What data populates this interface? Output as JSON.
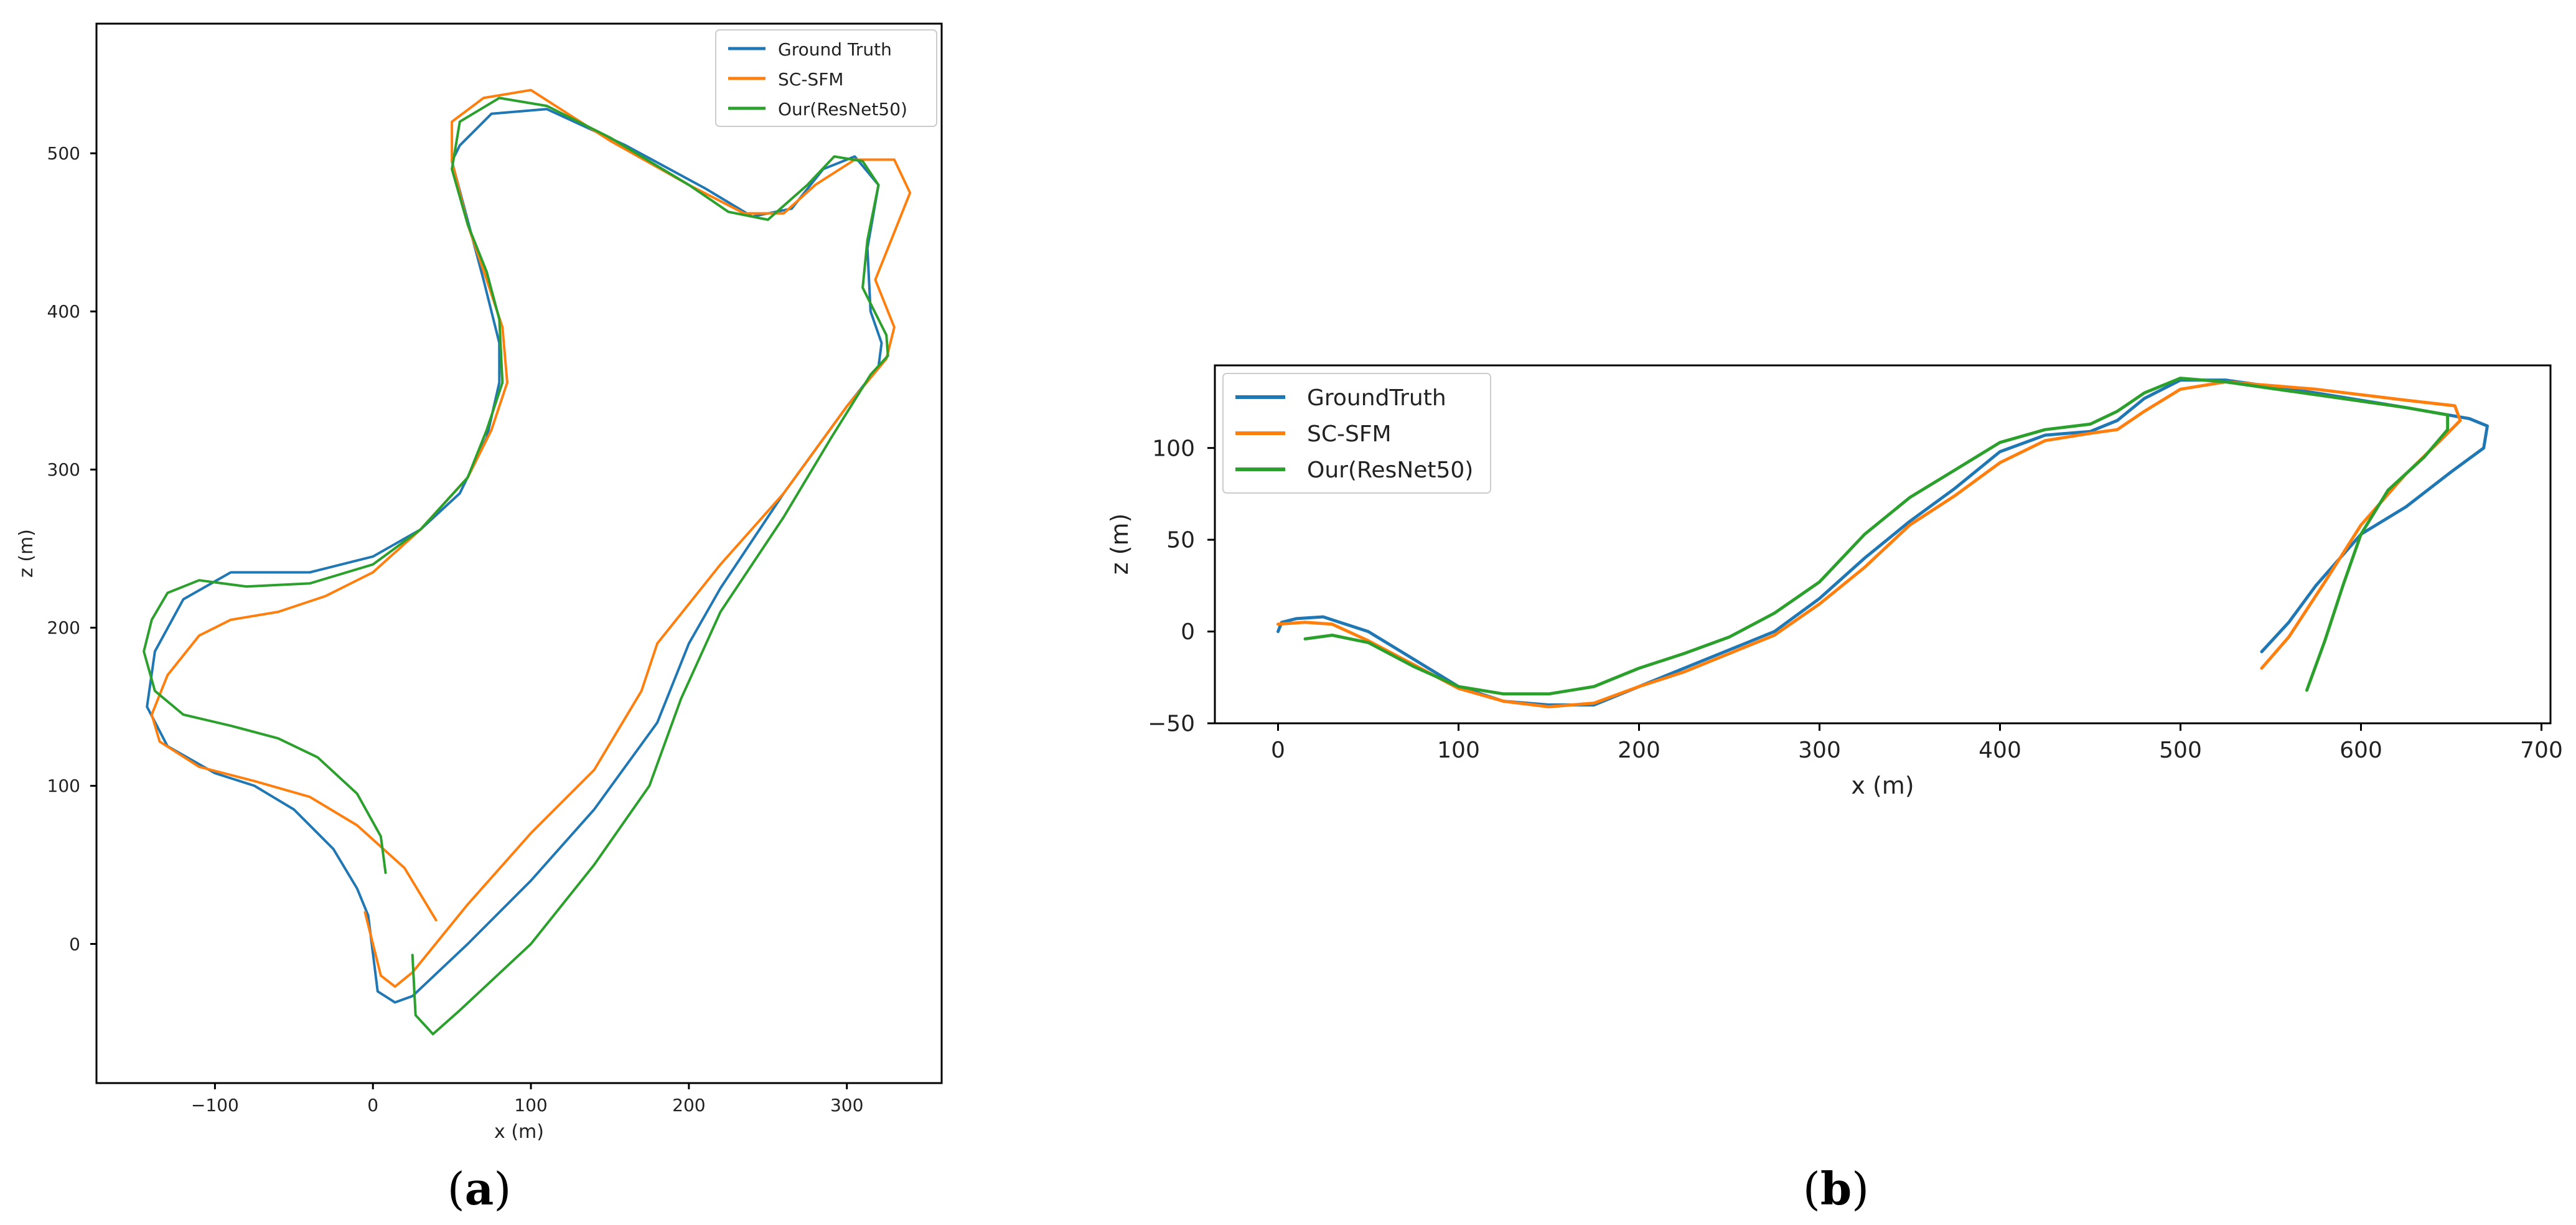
{
  "chart_data": [
    {
      "panel": "a",
      "type": "line",
      "caption_open": "(",
      "caption_letter": "a",
      "caption_close": ")",
      "xlabel": "x (m)",
      "ylabel": "z (m)",
      "xlim": [
        -175,
        360
      ],
      "ylim": [
        -88,
        582
      ],
      "xticks": [
        -100,
        0,
        100,
        200,
        300
      ],
      "yticks": [
        0,
        100,
        200,
        300,
        400,
        500
      ],
      "legend_position": "top-right",
      "series": [
        {
          "name": "Ground Truth",
          "color": "#1f77b4",
          "points": [
            [
              -3,
              18
            ],
            [
              3,
              -30
            ],
            [
              14,
              -37
            ],
            [
              25,
              -33
            ],
            [
              60,
              0
            ],
            [
              100,
              40
            ],
            [
              140,
              85
            ],
            [
              180,
              140
            ],
            [
              200,
              190
            ],
            [
              220,
              225
            ],
            [
              260,
              285
            ],
            [
              300,
              340
            ],
            [
              320,
              365
            ],
            [
              322,
              380
            ],
            [
              315,
              400
            ],
            [
              313,
              440
            ],
            [
              320,
              480
            ],
            [
              305,
              498
            ],
            [
              285,
              490
            ],
            [
              265,
              465
            ],
            [
              240,
              460
            ],
            [
              210,
              478
            ],
            [
              160,
              505
            ],
            [
              110,
              528
            ],
            [
              75,
              525
            ],
            [
              55,
              505
            ],
            [
              50,
              495
            ],
            [
              58,
              465
            ],
            [
              70,
              420
            ],
            [
              80,
              380
            ],
            [
              80,
              355
            ],
            [
              72,
              320
            ],
            [
              55,
              285
            ],
            [
              30,
              262
            ],
            [
              0,
              245
            ],
            [
              -40,
              235
            ],
            [
              -90,
              235
            ],
            [
              -120,
              218
            ],
            [
              -138,
              185
            ],
            [
              -143,
              150
            ],
            [
              -130,
              125
            ],
            [
              -100,
              108
            ],
            [
              -75,
              100
            ],
            [
              -50,
              85
            ],
            [
              -25,
              60
            ],
            [
              -10,
              35
            ],
            [
              -3,
              18
            ]
          ]
        },
        {
          "name": "SC-SFM",
          "color": "#ff7f0e",
          "points": [
            [
              -5,
              20
            ],
            [
              5,
              -20
            ],
            [
              14,
              -27
            ],
            [
              25,
              -18
            ],
            [
              60,
              25
            ],
            [
              100,
              70
            ],
            [
              140,
              110
            ],
            [
              170,
              160
            ],
            [
              180,
              190
            ],
            [
              220,
              240
            ],
            [
              260,
              285
            ],
            [
              300,
              340
            ],
            [
              325,
              370
            ],
            [
              330,
              390
            ],
            [
              318,
              420
            ],
            [
              330,
              450
            ],
            [
              340,
              475
            ],
            [
              330,
              496
            ],
            [
              305,
              496
            ],
            [
              280,
              480
            ],
            [
              260,
              462
            ],
            [
              235,
              462
            ],
            [
              200,
              480
            ],
            [
              150,
              508
            ],
            [
              100,
              540
            ],
            [
              70,
              535
            ],
            [
              50,
              520
            ],
            [
              50,
              495
            ],
            [
              60,
              455
            ],
            [
              72,
              420
            ],
            [
              82,
              390
            ],
            [
              85,
              355
            ],
            [
              75,
              325
            ],
            [
              60,
              295
            ],
            [
              30,
              262
            ],
            [
              0,
              235
            ],
            [
              -30,
              220
            ],
            [
              -60,
              210
            ],
            [
              -90,
              205
            ],
            [
              -110,
              195
            ],
            [
              -130,
              170
            ],
            [
              -140,
              145
            ],
            [
              -135,
              128
            ],
            [
              -110,
              112
            ],
            [
              -75,
              103
            ],
            [
              -40,
              93
            ],
            [
              -10,
              75
            ],
            [
              20,
              48
            ],
            [
              40,
              15
            ]
          ]
        },
        {
          "name": "Our(ResNet50)",
          "color": "#2ca02c",
          "points": [
            [
              25,
              -7
            ],
            [
              27,
              -45
            ],
            [
              38,
              -57
            ],
            [
              55,
              -42
            ],
            [
              100,
              0
            ],
            [
              140,
              50
            ],
            [
              175,
              100
            ],
            [
              195,
              155
            ],
            [
              220,
              210
            ],
            [
              260,
              270
            ],
            [
              290,
              320
            ],
            [
              315,
              360
            ],
            [
              326,
              372
            ],
            [
              325,
              385
            ],
            [
              310,
              415
            ],
            [
              313,
              445
            ],
            [
              320,
              480
            ],
            [
              310,
              495
            ],
            [
              292,
              498
            ],
            [
              275,
              480
            ],
            [
              250,
              458
            ],
            [
              225,
              463
            ],
            [
              200,
              480
            ],
            [
              150,
              510
            ],
            [
              110,
              530
            ],
            [
              80,
              535
            ],
            [
              55,
              520
            ],
            [
              50,
              490
            ],
            [
              60,
              455
            ],
            [
              72,
              425
            ],
            [
              80,
              395
            ],
            [
              82,
              355
            ],
            [
              72,
              325
            ],
            [
              60,
              295
            ],
            [
              30,
              262
            ],
            [
              0,
              240
            ],
            [
              -40,
              228
            ],
            [
              -80,
              226
            ],
            [
              -110,
              230
            ],
            [
              -130,
              222
            ],
            [
              -140,
              205
            ],
            [
              -145,
              185
            ],
            [
              -138,
              160
            ],
            [
              -120,
              145
            ],
            [
              -90,
              138
            ],
            [
              -60,
              130
            ],
            [
              -35,
              118
            ],
            [
              -10,
              95
            ],
            [
              5,
              68
            ],
            [
              8,
              45
            ]
          ]
        }
      ]
    },
    {
      "panel": "b",
      "type": "line",
      "caption_open": "(",
      "caption_letter": "b",
      "caption_close": ")",
      "xlabel": "x (m)",
      "ylabel": "z (m)",
      "xlim": [
        -35,
        705
      ],
      "ylim": [
        -50,
        145
      ],
      "xticks": [
        0,
        100,
        200,
        300,
        400,
        500,
        600,
        700
      ],
      "yticks": [
        -50,
        0,
        50,
        100
      ],
      "legend_position": "top-left",
      "series": [
        {
          "name": "GroundTruth",
          "color": "#1f77b4",
          "points": [
            [
              0,
              0
            ],
            [
              2,
              5
            ],
            [
              10,
              7
            ],
            [
              25,
              8
            ],
            [
              50,
              0
            ],
            [
              75,
              -15
            ],
            [
              100,
              -30
            ],
            [
              125,
              -38
            ],
            [
              150,
              -40
            ],
            [
              175,
              -40
            ],
            [
              200,
              -30
            ],
            [
              225,
              -20
            ],
            [
              250,
              -10
            ],
            [
              275,
              0
            ],
            [
              300,
              18
            ],
            [
              325,
              40
            ],
            [
              350,
              60
            ],
            [
              375,
              78
            ],
            [
              400,
              98
            ],
            [
              425,
              107
            ],
            [
              450,
              109
            ],
            [
              465,
              115
            ],
            [
              480,
              127
            ],
            [
              500,
              137
            ],
            [
              525,
              137
            ],
            [
              575,
              130
            ],
            [
              625,
              122
            ],
            [
              660,
              116
            ],
            [
              670,
              112
            ],
            [
              668,
              100
            ],
            [
              650,
              87
            ],
            [
              625,
              68
            ],
            [
              600,
              53
            ],
            [
              575,
              25
            ],
            [
              560,
              5
            ],
            [
              545,
              -11
            ]
          ]
        },
        {
          "name": "SC-SFM",
          "color": "#ff7f0e",
          "points": [
            [
              0,
              4
            ],
            [
              15,
              5
            ],
            [
              30,
              4
            ],
            [
              50,
              -5
            ],
            [
              75,
              -18
            ],
            [
              100,
              -31
            ],
            [
              125,
              -38
            ],
            [
              150,
              -41
            ],
            [
              175,
              -39
            ],
            [
              200,
              -30
            ],
            [
              225,
              -22
            ],
            [
              250,
              -12
            ],
            [
              275,
              -2
            ],
            [
              300,
              15
            ],
            [
              325,
              35
            ],
            [
              350,
              58
            ],
            [
              375,
              74
            ],
            [
              400,
              92
            ],
            [
              425,
              104
            ],
            [
              450,
              108
            ],
            [
              465,
              110
            ],
            [
              480,
              120
            ],
            [
              500,
              132
            ],
            [
              525,
              136
            ],
            [
              575,
              132
            ],
            [
              625,
              126
            ],
            [
              652,
              123
            ],
            [
              655,
              115
            ],
            [
              645,
              105
            ],
            [
              625,
              86
            ],
            [
              600,
              58
            ],
            [
              580,
              27
            ],
            [
              560,
              -3
            ],
            [
              545,
              -20
            ]
          ]
        },
        {
          "name": "Our(ResNet50)",
          "color": "#2ca02c",
          "points": [
            [
              15,
              -4
            ],
            [
              30,
              -2
            ],
            [
              50,
              -6
            ],
            [
              75,
              -19
            ],
            [
              100,
              -30
            ],
            [
              125,
              -34
            ],
            [
              150,
              -34
            ],
            [
              175,
              -30
            ],
            [
              200,
              -20
            ],
            [
              225,
              -12
            ],
            [
              250,
              -3
            ],
            [
              275,
              10
            ],
            [
              300,
              27
            ],
            [
              325,
              53
            ],
            [
              350,
              73
            ],
            [
              375,
              88
            ],
            [
              400,
              103
            ],
            [
              425,
              110
            ],
            [
              450,
              113
            ],
            [
              465,
              120
            ],
            [
              480,
              130
            ],
            [
              500,
              138
            ],
            [
              525,
              136
            ],
            [
              575,
              129
            ],
            [
              625,
              122
            ],
            [
              648,
              118
            ],
            [
              648,
              110
            ],
            [
              635,
              95
            ],
            [
              615,
              77
            ],
            [
              600,
              53
            ],
            [
              590,
              25
            ],
            [
              580,
              -5
            ],
            [
              570,
              -32
            ]
          ]
        }
      ]
    }
  ]
}
